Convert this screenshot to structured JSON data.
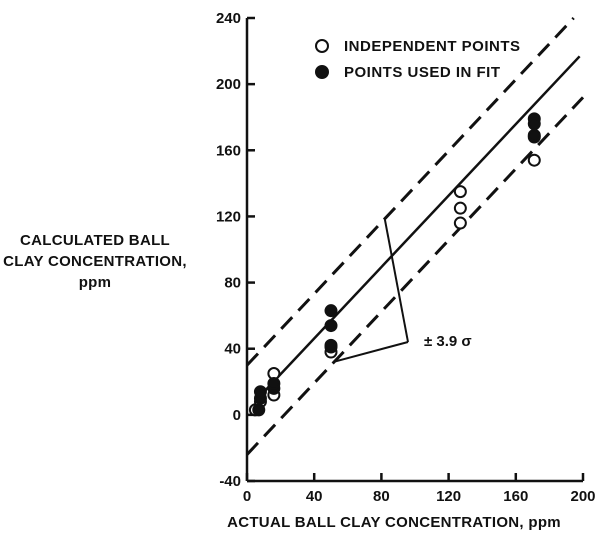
{
  "chart_data": {
    "type": "scatter",
    "xlabel": "ACTUAL BALL CLAY CONCENTRATION,  ppm",
    "ylabel_lines": [
      "CALCULATED BALL",
      "CLAY CONCENTRATION,",
      "ppm"
    ],
    "xlim": [
      0,
      200
    ],
    "ylim": [
      -40,
      240
    ],
    "x_ticks": [
      0,
      40,
      80,
      120,
      160,
      200
    ],
    "y_ticks": [
      -40,
      0,
      40,
      80,
      120,
      160,
      200,
      240
    ],
    "x_tick_labels": [
      "0",
      "40",
      "80",
      "120",
      "160",
      "200"
    ],
    "y_tick_labels": [
      "-40",
      "0",
      "40",
      "80",
      "120",
      "160",
      "200",
      "240"
    ],
    "legend_position": "top-right",
    "grid": false,
    "series": [
      {
        "name": "INDEPENDENT POINTS",
        "marker": "open-circle",
        "points": [
          [
            5,
            3
          ],
          [
            8,
            8
          ],
          [
            16,
            12
          ],
          [
            16,
            25
          ],
          [
            50,
            38
          ],
          [
            50,
            41
          ],
          [
            127,
            135
          ],
          [
            127,
            125
          ],
          [
            127,
            116
          ],
          [
            171,
            168
          ],
          [
            171,
            154
          ]
        ]
      },
      {
        "name": "POINTS USED IN FIT",
        "marker": "filled-circle",
        "points": [
          [
            7,
            3
          ],
          [
            8,
            10
          ],
          [
            8,
            14
          ],
          [
            16,
            16
          ],
          [
            16,
            19
          ],
          [
            50,
            63
          ],
          [
            50,
            54
          ],
          [
            50,
            42
          ],
          [
            171,
            179
          ],
          [
            171,
            176
          ],
          [
            171,
            169
          ]
        ]
      }
    ],
    "fit_line": {
      "style": "solid",
      "slope": 1.08,
      "intercept": 3
    },
    "confidence_band": {
      "style": "dashed",
      "label": "± 3.9 σ",
      "upper": {
        "slope": 1.08,
        "intercept": 30
      },
      "lower": {
        "slope": 1.08,
        "intercept": -24
      }
    }
  }
}
